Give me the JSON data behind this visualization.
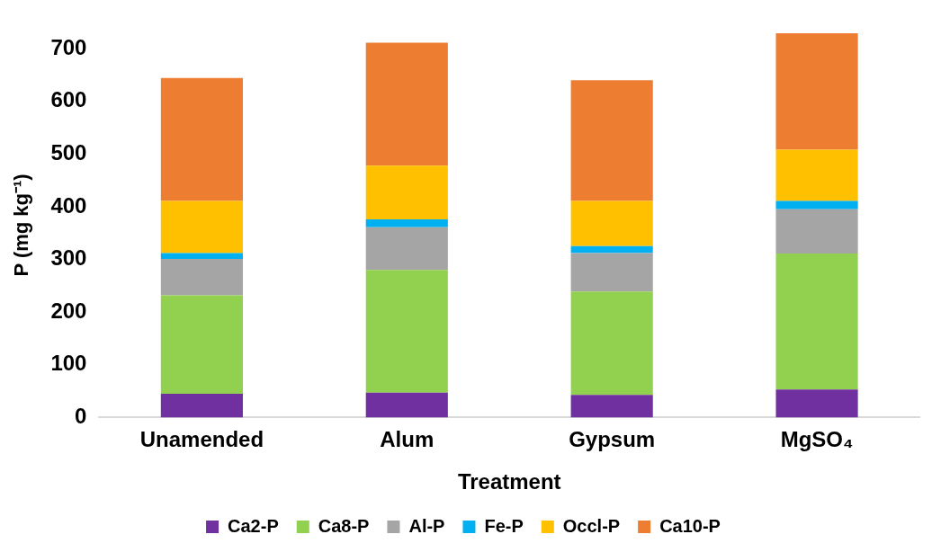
{
  "chart_data": {
    "type": "bar",
    "stacked": true,
    "xlabel": "Treatment",
    "ylabel": "P (mg kg⁻¹)",
    "categories": [
      "Unamended",
      "Alum",
      "Gypsum",
      "MgSO₄"
    ],
    "series": [
      {
        "name": "Ca2-P",
        "color": "#7030a0",
        "values": [
          45,
          47,
          43,
          53
        ]
      },
      {
        "name": "Ca8-P",
        "color": "#92d050",
        "values": [
          187,
          233,
          196,
          258
        ]
      },
      {
        "name": "Al-P",
        "color": "#a5a5a5",
        "values": [
          69,
          81,
          73,
          84
        ]
      },
      {
        "name": "Fe-P",
        "color": "#00b0f0",
        "values": [
          11,
          15,
          13,
          16
        ]
      },
      {
        "name": "Occl-P",
        "color": "#ffc000",
        "values": [
          99,
          102,
          86,
          97
        ]
      },
      {
        "name": "Ca10-P",
        "color": "#ed7d31",
        "values": [
          233,
          233,
          229,
          221
        ]
      }
    ],
    "ylim": [
      0,
      730
    ],
    "yticks": [
      0,
      100,
      200,
      300,
      400,
      500,
      600,
      700
    ],
    "grid": false,
    "legend": "bottom"
  }
}
